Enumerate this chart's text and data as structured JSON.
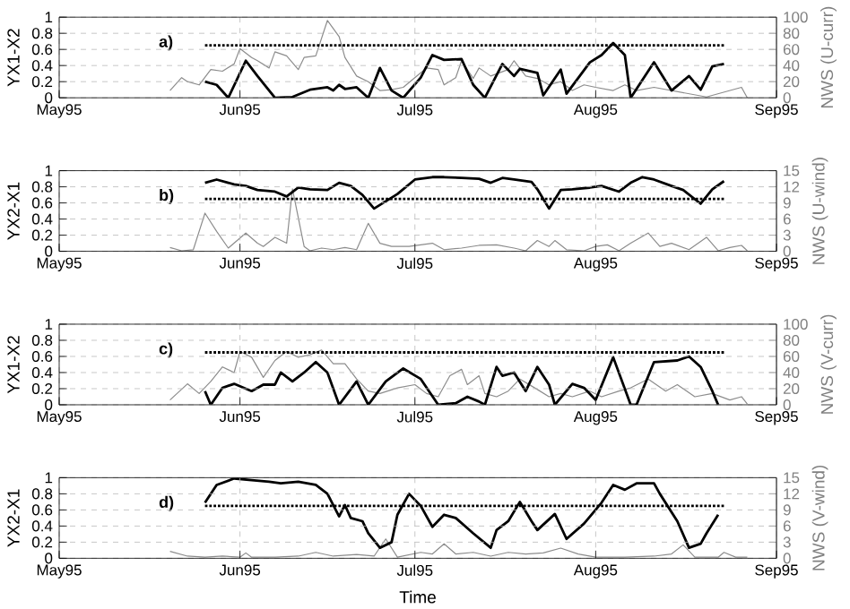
{
  "chart_data": [
    {
      "type": "line",
      "ylabel": "YX1-X2",
      "y2label": "NWS (U-curr)",
      "annotations": [
        "a)"
      ],
      "grid": true,
      "xlim": [
        "1995-05-01",
        "1995-09-01"
      ],
      "xticks": [
        {
          "value": "1995-05-01",
          "label": "May95"
        },
        {
          "value": "1995-06-01",
          "label": "Jun95"
        },
        {
          "value": "1995-07-01",
          "label": "Jul95"
        },
        {
          "value": "1995-08-01",
          "label": "Aug95"
        },
        {
          "value": "1995-09-01",
          "label": "Sep95"
        }
      ],
      "ylim": [
        0,
        1
      ],
      "yticks": [
        0,
        0.2,
        0.4,
        0.6,
        0.8,
        1
      ],
      "y2lim": [
        0,
        100
      ],
      "y2ticks": [
        0,
        20,
        40,
        60,
        80,
        100
      ],
      "series": [
        {
          "color": "#8c8c8c",
          "axis": "y2",
          "x": [
            "1995-05-20",
            "1995-05-22",
            "1995-05-23",
            "1995-05-25",
            "1995-05-27",
            "1995-05-29",
            "1995-05-31",
            "1995-06-01",
            "1995-06-03",
            "1995-06-04",
            "1995-06-06",
            "1995-06-07",
            "1995-06-09",
            "1995-06-11",
            "1995-06-12",
            "1995-06-14",
            "1995-06-16",
            "1995-06-18",
            "1995-06-19",
            "1995-06-21",
            "1995-06-23",
            "1995-06-25",
            "1995-06-27",
            "1995-06-29",
            "1995-07-02",
            "1995-07-03",
            "1995-07-05",
            "1995-07-06",
            "1995-07-08",
            "1995-07-09",
            "1995-07-11",
            "1995-07-12",
            "1995-07-14",
            "1995-07-17",
            "1995-07-18",
            "1995-07-20",
            "1995-07-22",
            "1995-07-24",
            "1995-07-26",
            "1995-07-28",
            "1995-07-30",
            "1995-08-01",
            "1995-08-04",
            "1995-08-06",
            "1995-08-08",
            "1995-08-11",
            "1995-08-14",
            "1995-08-17",
            "1995-08-20",
            "1995-08-24",
            "1995-08-26",
            "1995-08-27"
          ],
          "values": [
            9,
            25,
            20,
            16,
            35,
            33,
            42,
            61,
            50,
            46,
            37,
            57,
            52,
            35,
            50,
            52,
            96,
            76,
            50,
            27,
            20,
            9,
            10,
            13,
            31,
            37,
            35,
            16,
            25,
            46,
            24,
            37,
            27,
            35,
            46,
            27,
            24,
            16,
            20,
            9,
            16,
            13,
            9,
            16,
            9,
            13,
            9,
            5,
            1,
            9,
            13,
            0
          ]
        },
        {
          "color": "#000000",
          "axis": "y",
          "x": [
            "1995-05-26",
            "1995-05-28",
            "1995-05-30",
            "1995-06-02",
            "1995-06-04",
            "1995-06-07",
            "1995-06-10",
            "1995-06-13",
            "1995-06-16",
            "1995-06-17",
            "1995-06-18",
            "1995-06-19",
            "1995-06-21",
            "1995-06-23",
            "1995-06-25",
            "1995-06-27",
            "1995-06-29",
            "1995-07-02",
            "1995-07-04",
            "1995-07-06",
            "1995-07-09",
            "1995-07-11",
            "1995-07-13",
            "1995-07-16",
            "1995-07-18",
            "1995-07-19",
            "1995-07-22",
            "1995-07-23",
            "1995-07-26",
            "1995-07-27",
            "1995-07-31",
            "1995-08-02",
            "1995-08-04",
            "1995-08-06",
            "1995-08-07",
            "1995-08-11",
            "1995-08-14",
            "1995-08-17",
            "1995-08-19",
            "1995-08-21",
            "1995-08-23"
          ],
          "values": [
            0.2,
            0.16,
            0,
            0.46,
            0.27,
            0,
            0.01,
            0.1,
            0.13,
            0.09,
            0.16,
            0.11,
            0.13,
            0,
            0.37,
            0.09,
            0,
            0.25,
            0.53,
            0.47,
            0.48,
            0.16,
            0,
            0.42,
            0.27,
            0.36,
            0.31,
            0.03,
            0.35,
            0.05,
            0.44,
            0.53,
            0.68,
            0.53,
            0,
            0.44,
            0.09,
            0.27,
            0.1,
            0.39,
            0.42
          ]
        },
        {
          "color": "#000000",
          "axis": "y",
          "line_style": "dotted",
          "x": [
            "1995-05-26",
            "1995-08-23"
          ],
          "values": [
            0.65,
            0.65
          ]
        }
      ]
    },
    {
      "type": "line",
      "ylabel": "YX2-X1",
      "y2label": "NWS (U-wind)",
      "annotations": [
        "b)"
      ],
      "grid": true,
      "xlim": [
        "1995-05-01",
        "1995-09-01"
      ],
      "xticks": [
        {
          "value": "1995-05-01",
          "label": "May95"
        },
        {
          "value": "1995-06-01",
          "label": "Jun95"
        },
        {
          "value": "1995-07-01",
          "label": "Jul95"
        },
        {
          "value": "1995-08-01",
          "label": "Aug95"
        },
        {
          "value": "1995-09-01",
          "label": "Sep95"
        }
      ],
      "ylim": [
        0,
        1
      ],
      "yticks": [
        0,
        0.2,
        0.4,
        0.6,
        0.8,
        1
      ],
      "y2lim": [
        0,
        15
      ],
      "y2ticks": [
        0,
        3,
        6,
        9,
        12,
        15
      ],
      "series": [
        {
          "color": "#8c8c8c",
          "axis": "y2",
          "x": [
            "1995-05-20",
            "1995-05-22",
            "1995-05-24",
            "1995-05-26",
            "1995-05-28",
            "1995-05-30",
            "1995-06-02",
            "1995-06-04",
            "1995-06-05",
            "1995-06-07",
            "1995-06-09",
            "1995-06-10",
            "1995-06-12",
            "1995-06-13",
            "1995-06-15",
            "1995-06-17",
            "1995-06-19",
            "1995-06-21",
            "1995-06-23",
            "1995-06-25",
            "1995-06-27",
            "1995-06-30",
            "1995-07-04",
            "1995-07-06",
            "1995-07-09",
            "1995-07-12",
            "1995-07-15",
            "1995-07-18",
            "1995-07-20",
            "1995-07-22",
            "1995-07-24",
            "1995-07-25",
            "1995-07-27",
            "1995-07-30",
            "1995-08-01",
            "1995-08-03",
            "1995-08-05",
            "1995-08-07",
            "1995-08-10",
            "1995-08-12",
            "1995-08-14",
            "1995-08-17",
            "1995-08-20",
            "1995-08-22",
            "1995-08-24",
            "1995-08-26",
            "1995-08-27"
          ],
          "values": [
            0.7,
            0.1,
            0.3,
            7.1,
            3.7,
            0.6,
            3.4,
            1.5,
            0.9,
            2.6,
            1.5,
            11.6,
            0.9,
            0.1,
            0.6,
            0.3,
            0.7,
            0.3,
            5.2,
            1.5,
            0.9,
            0.9,
            1.5,
            0.3,
            0.6,
            1.1,
            1.2,
            0.6,
            0.1,
            2.0,
            0.9,
            2.0,
            0.3,
            0.1,
            0.9,
            1.2,
            0.1,
            1.5,
            3.4,
            0.9,
            1.5,
            0.3,
            2.6,
            0.1,
            0.7,
            1.1,
            0.1
          ]
        },
        {
          "color": "#000000",
          "axis": "y",
          "x": [
            "1995-05-26",
            "1995-05-28",
            "1995-05-31",
            "1995-06-02",
            "1995-06-04",
            "1995-06-07",
            "1995-06-09",
            "1995-06-11",
            "1995-06-13",
            "1995-06-16",
            "1995-06-18",
            "1995-06-20",
            "1995-06-22",
            "1995-06-24",
            "1995-06-26",
            "1995-06-28",
            "1995-07-01",
            "1995-07-04",
            "1995-07-06",
            "1995-07-09",
            "1995-07-12",
            "1995-07-14",
            "1995-07-16",
            "1995-07-18",
            "1995-07-21",
            "1995-07-22",
            "1995-07-24",
            "1995-07-26",
            "1995-07-28",
            "1995-07-31",
            "1995-08-02",
            "1995-08-05",
            "1995-08-07",
            "1995-08-09",
            "1995-08-11",
            "1995-08-14",
            "1995-08-16",
            "1995-08-19",
            "1995-08-21",
            "1995-08-23"
          ],
          "values": [
            0.85,
            0.89,
            0.83,
            0.81,
            0.76,
            0.74,
            0.68,
            0.79,
            0.77,
            0.76,
            0.85,
            0.81,
            0.7,
            0.53,
            0.62,
            0.71,
            0.89,
            0.92,
            0.92,
            0.91,
            0.9,
            0.85,
            0.91,
            0.89,
            0.86,
            0.77,
            0.53,
            0.76,
            0.77,
            0.79,
            0.81,
            0.74,
            0.85,
            0.92,
            0.89,
            0.81,
            0.76,
            0.59,
            0.77,
            0.87
          ]
        },
        {
          "color": "#000000",
          "axis": "y",
          "line_style": "dotted",
          "x": [
            "1995-05-26",
            "1995-08-23"
          ],
          "values": [
            0.65,
            0.65
          ]
        }
      ]
    },
    {
      "type": "line",
      "ylabel": "YX1-X2",
      "y2label": "NWS (V-curr)",
      "annotations": [
        "c)"
      ],
      "grid": true,
      "xlim": [
        "1995-05-01",
        "1995-09-01"
      ],
      "xticks": [
        {
          "value": "1995-05-01",
          "label": "May95"
        },
        {
          "value": "1995-06-01",
          "label": "Jun95"
        },
        {
          "value": "1995-07-01",
          "label": "Jul95"
        },
        {
          "value": "1995-08-01",
          "label": "Aug95"
        },
        {
          "value": "1995-09-01",
          "label": "Sep95"
        }
      ],
      "ylim": [
        0,
        1
      ],
      "yticks": [
        0,
        0.2,
        0.4,
        0.6,
        0.8,
        1
      ],
      "y2lim": [
        0,
        100
      ],
      "y2ticks": [
        0,
        20,
        40,
        60,
        80,
        100
      ],
      "series": [
        {
          "color": "#8c8c8c",
          "axis": "y2",
          "x": [
            "1995-05-20",
            "1995-05-23",
            "1995-05-25",
            "1995-05-27",
            "1995-05-29",
            "1995-05-31",
            "1995-06-01",
            "1995-06-03",
            "1995-06-05",
            "1995-06-07",
            "1995-06-09",
            "1995-06-11",
            "1995-06-13",
            "1995-06-15",
            "1995-06-17",
            "1995-06-19",
            "1995-06-21",
            "1995-06-23",
            "1995-06-25",
            "1995-06-28",
            "1995-07-01",
            "1995-07-03",
            "1995-07-05",
            "1995-07-07",
            "1995-07-09",
            "1995-07-10",
            "1995-07-12",
            "1995-07-13",
            "1995-07-15",
            "1995-07-17",
            "1995-07-19",
            "1995-07-22",
            "1995-07-24",
            "1995-07-26",
            "1995-07-28",
            "1995-07-31",
            "1995-08-02",
            "1995-08-05",
            "1995-08-07",
            "1995-08-10",
            "1995-08-13",
            "1995-08-15",
            "1995-08-18",
            "1995-08-21",
            "1995-08-24",
            "1995-08-26",
            "1995-08-27"
          ],
          "values": [
            6,
            26,
            14,
            29,
            47,
            40,
            66,
            59,
            34,
            55,
            66,
            59,
            62,
            68,
            51,
            51,
            32,
            17,
            14,
            21,
            25,
            14,
            10,
            36,
            44,
            25,
            36,
            14,
            10,
            17,
            32,
            19,
            10,
            14,
            10,
            17,
            10,
            17,
            21,
            32,
            17,
            25,
            10,
            14,
            6,
            10,
            1
          ]
        },
        {
          "color": "#000000",
          "axis": "y",
          "x": [
            "1995-05-26",
            "1995-05-27",
            "1995-05-29",
            "1995-05-31",
            "1995-06-03",
            "1995-06-05",
            "1995-06-07",
            "1995-06-08",
            "1995-06-10",
            "1995-06-12",
            "1995-06-14",
            "1995-06-16",
            "1995-06-18",
            "1995-06-21",
            "1995-06-23",
            "1995-06-26",
            "1995-06-29",
            "1995-07-02",
            "1995-07-05",
            "1995-07-08",
            "1995-07-10",
            "1995-07-12",
            "1995-07-13",
            "1995-07-15",
            "1995-07-16",
            "1995-07-18",
            "1995-07-20",
            "1995-07-22",
            "1995-07-24",
            "1995-07-25",
            "1995-07-28",
            "1995-07-30",
            "1995-08-01",
            "1995-08-04",
            "1995-08-07",
            "1995-08-08",
            "1995-08-11",
            "1995-08-15",
            "1995-08-17",
            "1995-08-19",
            "1995-08-21",
            "1995-08-22"
          ],
          "values": [
            0.17,
            0,
            0.21,
            0.26,
            0.17,
            0.25,
            0.25,
            0.4,
            0.29,
            0.4,
            0.53,
            0.4,
            0,
            0.29,
            0,
            0.29,
            0.45,
            0.32,
            0,
            0.02,
            0.1,
            0.04,
            0,
            0.47,
            0.36,
            0.4,
            0.17,
            0.47,
            0.25,
            0,
            0.26,
            0.21,
            0.06,
            0.59,
            0,
            0,
            0.53,
            0.55,
            0.6,
            0.47,
            0.17,
            0
          ]
        },
        {
          "color": "#000000",
          "axis": "y",
          "line_style": "dotted",
          "x": [
            "1995-05-26",
            "1995-08-23"
          ],
          "values": [
            0.65,
            0.65
          ]
        }
      ]
    },
    {
      "type": "line",
      "ylabel": "YX2-X1",
      "y2label": "NWS (V-wind)",
      "xlabel": "Time",
      "annotations": [
        "d)"
      ],
      "grid": true,
      "xlim": [
        "1995-05-01",
        "1995-09-01"
      ],
      "xticks": [
        {
          "value": "1995-05-01",
          "label": "May95"
        },
        {
          "value": "1995-06-01",
          "label": "Jun95"
        },
        {
          "value": "1995-07-01",
          "label": "Jul95"
        },
        {
          "value": "1995-08-01",
          "label": "Aug95"
        },
        {
          "value": "1995-09-01",
          "label": "Sep95"
        }
      ],
      "ylim": [
        0,
        1
      ],
      "yticks": [
        0,
        0.2,
        0.4,
        0.6,
        0.8,
        1
      ],
      "y2lim": [
        0,
        15
      ],
      "y2ticks": [
        0,
        3,
        6,
        9,
        12,
        15
      ],
      "series": [
        {
          "color": "#8c8c8c",
          "axis": "y2",
          "x": [
            "1995-05-20",
            "1995-05-23",
            "1995-05-26",
            "1995-05-29",
            "1995-06-01",
            "1995-06-02",
            "1995-06-03",
            "1995-06-07",
            "1995-06-11",
            "1995-06-14",
            "1995-06-17",
            "1995-06-21",
            "1995-06-24",
            "1995-06-26",
            "1995-06-28",
            "1995-07-02",
            "1995-07-04",
            "1995-07-06",
            "1995-07-08",
            "1995-07-11",
            "1995-07-14",
            "1995-07-17",
            "1995-07-20",
            "1995-07-23",
            "1995-07-26",
            "1995-07-29",
            "1995-08-01",
            "1995-08-06",
            "1995-08-11",
            "1995-08-14",
            "1995-08-16",
            "1995-08-18",
            "1995-08-22",
            "1995-08-23",
            "1995-08-25",
            "1995-08-27"
          ],
          "values": [
            1.3,
            0.4,
            0.2,
            0.4,
            0.2,
            1.0,
            0.2,
            0.2,
            0.4,
            1.1,
            0.4,
            0.7,
            0.4,
            3.6,
            0.2,
            1.1,
            0.8,
            2.7,
            0.8,
            1.1,
            0.4,
            1.1,
            0.8,
            1.0,
            1.9,
            0.8,
            0.2,
            0.2,
            0.4,
            0.8,
            2.5,
            0.2,
            0.2,
            1.1,
            0.2,
            0.2
          ]
        },
        {
          "color": "#000000",
          "axis": "y",
          "x": [
            "1995-05-26",
            "1995-05-28",
            "1995-05-31",
            "1995-06-03",
            "1995-06-06",
            "1995-06-08",
            "1995-06-11",
            "1995-06-14",
            "1995-06-16",
            "1995-06-18",
            "1995-06-19",
            "1995-06-20",
            "1995-06-22",
            "1995-06-23",
            "1995-06-25",
            "1995-06-27",
            "1995-06-28",
            "1995-06-30",
            "1995-07-02",
            "1995-07-04",
            "1995-07-06",
            "1995-07-08",
            "1995-07-11",
            "1995-07-14",
            "1995-07-15",
            "1995-07-17",
            "1995-07-19",
            "1995-07-21",
            "1995-07-22",
            "1995-07-25",
            "1995-07-27",
            "1995-07-30",
            "1995-08-02",
            "1995-08-04",
            "1995-08-06",
            "1995-08-08",
            "1995-08-11",
            "1995-08-12",
            "1995-08-15",
            "1995-08-17",
            "1995-08-19",
            "1995-08-20",
            "1995-08-22"
          ],
          "values": [
            0.69,
            0.91,
            0.99,
            0.97,
            0.95,
            0.93,
            0.95,
            0.91,
            0.8,
            0.52,
            0.66,
            0.5,
            0.46,
            0.31,
            0.13,
            0.2,
            0.54,
            0.8,
            0.65,
            0.39,
            0.54,
            0.5,
            0.31,
            0.13,
            0.35,
            0.46,
            0.7,
            0.46,
            0.35,
            0.55,
            0.24,
            0.43,
            0.69,
            0.91,
            0.85,
            0.93,
            0.93,
            0.8,
            0.46,
            0.13,
            0.18,
            0.31,
            0.54
          ]
        },
        {
          "color": "#000000",
          "axis": "y",
          "line_style": "dotted",
          "x": [
            "1995-05-26",
            "1995-08-23"
          ],
          "values": [
            0.65,
            0.65
          ]
        }
      ]
    }
  ]
}
